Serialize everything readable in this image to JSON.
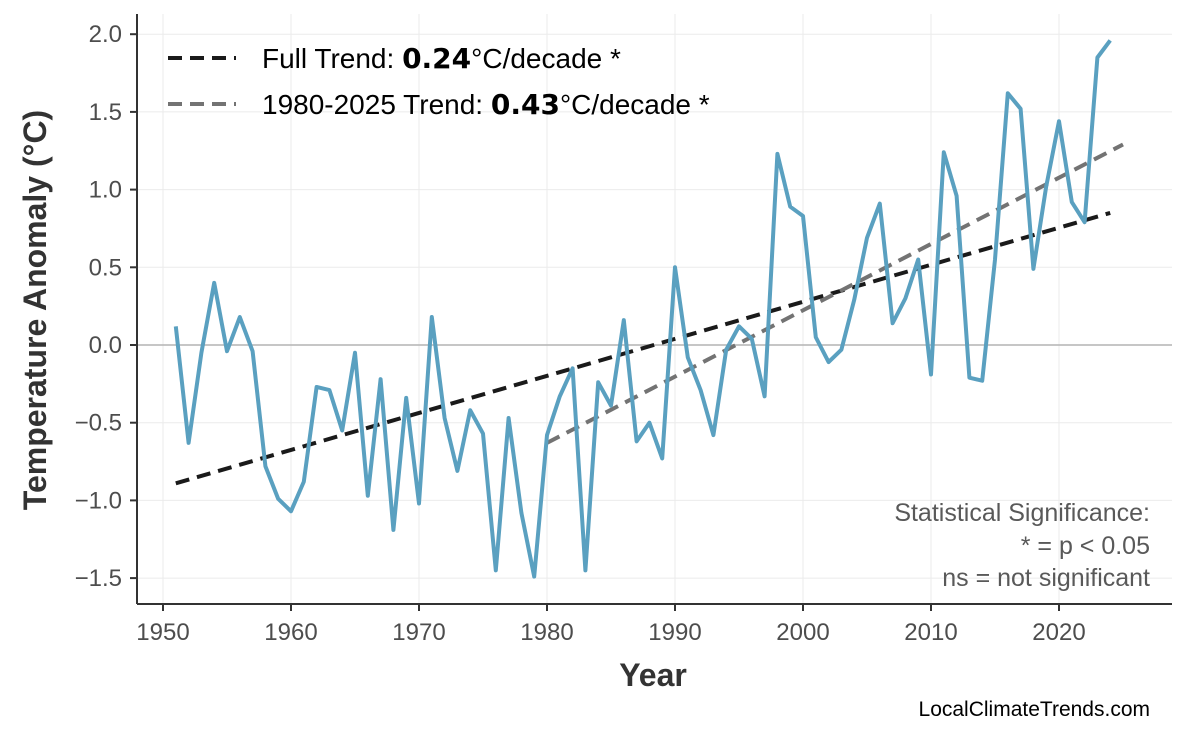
{
  "chart_data": {
    "type": "line",
    "xlabel": "Year",
    "ylabel": "Temperature Anomaly (°C)",
    "xlim": [
      1947.5,
      2028.5
    ],
    "ylim": [
      -1.65,
      2.1
    ],
    "xticks": [
      1950,
      1960,
      1970,
      1980,
      1990,
      2000,
      2010,
      2020
    ],
    "yticks": [
      -1.5,
      -1.0,
      -0.5,
      0.0,
      0.5,
      1.0,
      1.5,
      2.0
    ],
    "ytick_labels": [
      "−1.5",
      "−1.0",
      "−0.5",
      "0.0",
      "0.5",
      "1.0",
      "1.5",
      "2.0"
    ],
    "grid": true,
    "legend_position": "top-left",
    "series": [
      {
        "color": "#5aa0c0",
        "x": [
          1951,
          1952,
          1953,
          1954,
          1955,
          1956,
          1957,
          1958,
          1959,
          1960,
          1961,
          1962,
          1963,
          1964,
          1965,
          1966,
          1967,
          1968,
          1969,
          1970,
          1971,
          1972,
          1973,
          1974,
          1975,
          1976,
          1977,
          1978,
          1979,
          1980,
          1981,
          1982,
          1983,
          1984,
          1985,
          1986,
          1987,
          1988,
          1989,
          1990,
          1991,
          1992,
          1993,
          1994,
          1995,
          1996,
          1997,
          1998,
          1999,
          2000,
          2001,
          2002,
          2003,
          2004,
          2005,
          2006,
          2007,
          2008,
          2009,
          2010,
          2011,
          2012,
          2013,
          2014,
          2015,
          2016,
          2017,
          2018,
          2019,
          2020,
          2021,
          2022,
          2023,
          2024
        ],
        "y": [
          0.12,
          -0.63,
          -0.05,
          0.4,
          -0.04,
          0.18,
          -0.04,
          -0.78,
          -0.99,
          -1.07,
          -0.88,
          -0.27,
          -0.29,
          -0.55,
          -0.05,
          -0.97,
          -0.22,
          -1.19,
          -0.34,
          -1.02,
          0.18,
          -0.47,
          -0.81,
          -0.42,
          -0.57,
          -1.45,
          -0.47,
          -1.08,
          -1.49,
          -0.58,
          -0.33,
          -0.15,
          -1.45,
          -0.24,
          -0.39,
          0.16,
          -0.62,
          -0.5,
          -0.73,
          0.5,
          -0.08,
          -0.29,
          -0.58,
          -0.03,
          0.12,
          0.04,
          -0.33,
          1.23,
          0.89,
          0.83,
          0.05,
          -0.11,
          -0.03,
          0.29,
          0.69,
          0.91,
          0.14,
          0.3,
          0.55,
          -0.19,
          1.24,
          0.96,
          -0.21,
          -0.23,
          0.55,
          1.62,
          1.52,
          0.49,
          1.02,
          1.44,
          0.92,
          0.79,
          1.85,
          1.96
        ]
      }
    ],
    "trends": [
      {
        "label_prefix": "Full Trend: ",
        "value": "0.24",
        "label_suffix": "°C/decade *",
        "color": "#1a1a1a",
        "x": [
          1951,
          2024
        ],
        "y": [
          -0.89,
          0.85
        ]
      },
      {
        "label_prefix": "1980-2025 Trend: ",
        "value": "0.43",
        "label_suffix": "°C/decade *",
        "color": "#737373",
        "x": [
          1980,
          2025
        ],
        "y": [
          -0.63,
          1.29
        ]
      }
    ],
    "annotation": [
      "Statistical Significance:",
      "* = p < 0.05",
      "ns = not significant"
    ],
    "source": "LocalClimateTrends.com"
  }
}
